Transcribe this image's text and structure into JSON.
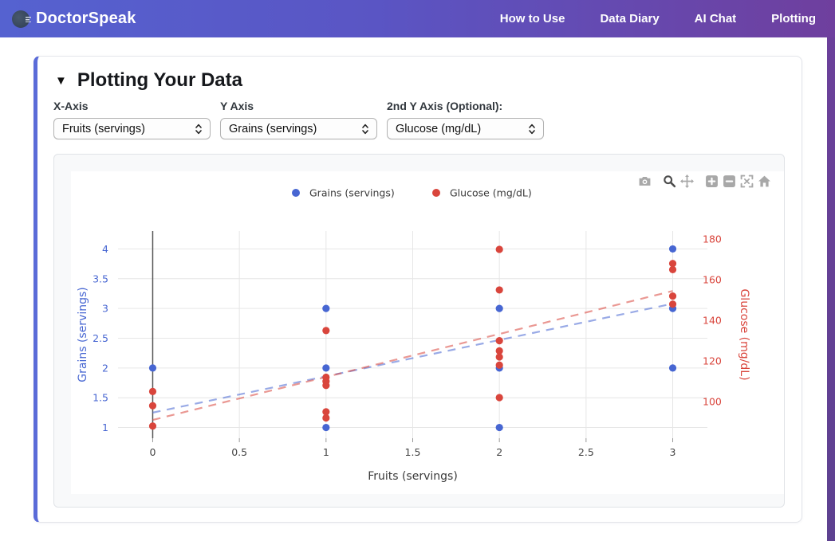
{
  "header": {
    "brand": "DoctorSpeak",
    "logo_icon": "speaking-head-icon",
    "nav": [
      {
        "label": "How to Use"
      },
      {
        "label": "Data Diary"
      },
      {
        "label": "AI Chat"
      },
      {
        "label": "Plotting"
      }
    ]
  },
  "panel": {
    "collapse_icon": "▼",
    "title": "Plotting Your Data",
    "accent_color": "#5a6bd8",
    "controls": [
      {
        "label": "X-Axis",
        "value": "Fruits (servings)"
      },
      {
        "label": "Y Axis",
        "value": "Grains (servings)"
      },
      {
        "label": "2nd Y Axis (Optional):",
        "value": "Glucose (mg/dL)"
      }
    ]
  },
  "toolbar": {
    "icons": [
      "camera",
      "zoom",
      "pan",
      "zoom-in",
      "zoom-out",
      "autoscale",
      "reset-home"
    ],
    "active_icon": "zoom",
    "inactive_color": "#a8a8a8",
    "active_color": "#4d4d4d"
  },
  "chart_data": {
    "type": "scatter",
    "xlabel": "Fruits (servings)",
    "x_ticks": [
      0,
      0.5,
      1,
      1.5,
      2,
      2.5,
      3
    ],
    "xlim": [
      -0.2,
      3.2
    ],
    "grid": true,
    "zeroline_x": 0,
    "legend_position": "top-center",
    "left_axis": {
      "label": "Grains (servings)",
      "color": "#4766d2",
      "ticks": [
        1,
        1.5,
        2,
        2.5,
        3,
        3.5,
        4
      ],
      "lim": [
        0.82,
        4.3
      ]
    },
    "right_axis": {
      "label": "Glucose (mg/dL)",
      "color": "#d9453c",
      "ticks": [
        100,
        120,
        140,
        160,
        180
      ],
      "lim": [
        82,
        184
      ]
    },
    "series": [
      {
        "name": "Grains (servings)",
        "color": "#4766d2",
        "axis": "left",
        "points": [
          [
            0,
            2
          ],
          [
            1,
            1
          ],
          [
            1,
            2
          ],
          [
            1,
            3
          ],
          [
            2,
            1
          ],
          [
            2,
            2
          ],
          [
            2,
            3
          ],
          [
            3,
            2
          ],
          [
            3,
            3
          ],
          [
            3,
            4
          ]
        ],
        "trend": {
          "x": [
            0,
            3
          ],
          "y": [
            1.25,
            3.08
          ],
          "style": "dashed"
        }
      },
      {
        "name": "Glucose (mg/dL)",
        "color": "#d9453c",
        "axis": "right",
        "points": [
          [
            0,
            88
          ],
          [
            0,
            98
          ],
          [
            0,
            105
          ],
          [
            1,
            92
          ],
          [
            1,
            95
          ],
          [
            1,
            108
          ],
          [
            1,
            110
          ],
          [
            1,
            112
          ],
          [
            1,
            135
          ],
          [
            2,
            102
          ],
          [
            2,
            118
          ],
          [
            2,
            122
          ],
          [
            2,
            125
          ],
          [
            2,
            130
          ],
          [
            2,
            155
          ],
          [
            2,
            175
          ],
          [
            3,
            148
          ],
          [
            3,
            152
          ],
          [
            3,
            165
          ],
          [
            3,
            168
          ]
        ],
        "trend": {
          "x": [
            0,
            3
          ],
          "y": [
            91,
            154.5
          ],
          "style": "dashed"
        }
      }
    ]
  }
}
